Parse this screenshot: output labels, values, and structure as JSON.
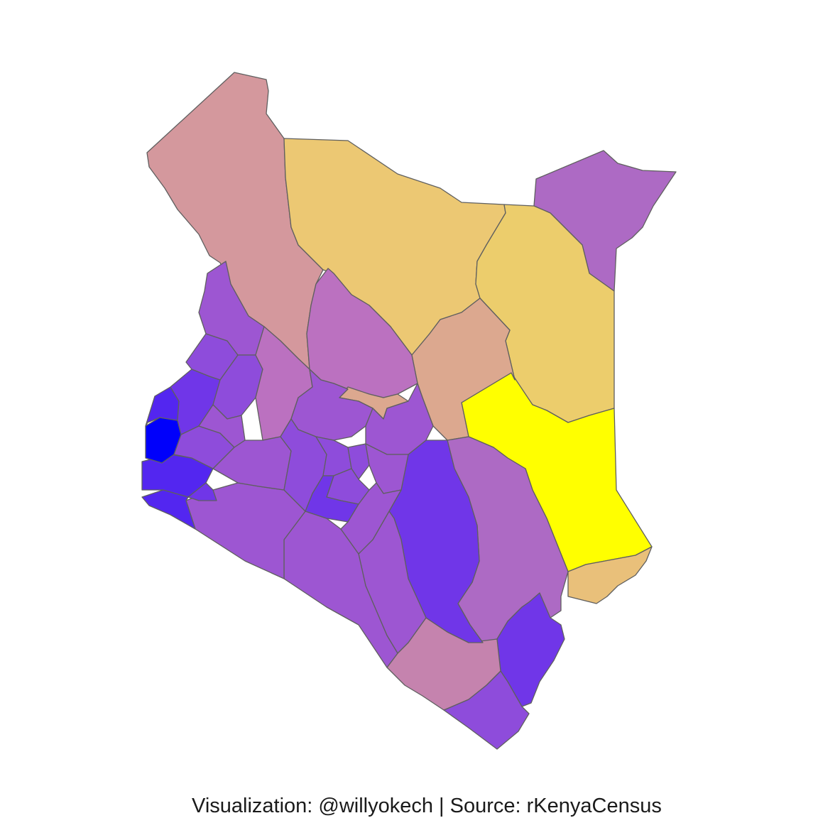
{
  "caption": "Visualization: @willyokech | Source: rKenyaCensus",
  "palette": {
    "pink_tan": "#d4989d",
    "gold": "#ecc873",
    "gold_light": "#eccd6c",
    "orchid": "#ad6ac4",
    "yellow": "#ffff00",
    "salmon": "#dca88f",
    "sand": "#e9c07a",
    "mauve": "#bb71c0",
    "rose": "#c583ae",
    "purple_mid": "#9d56d2",
    "purple": "#8e4cdb",
    "violet": "#7036e8",
    "indigo": "#5326f0",
    "blue": "#0000fb"
  }
}
